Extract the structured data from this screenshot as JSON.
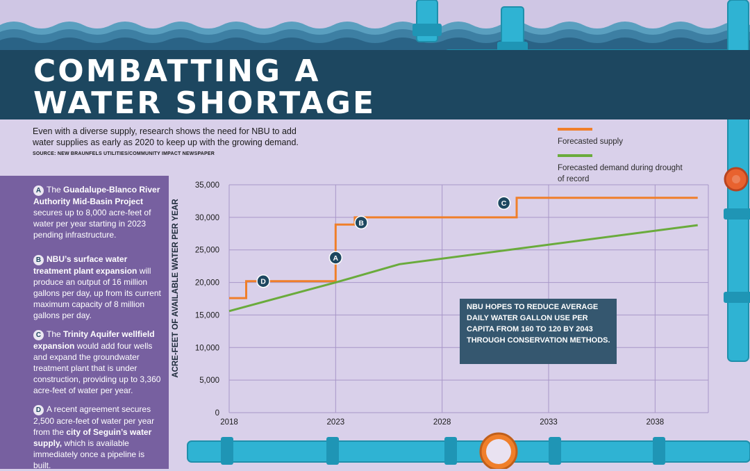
{
  "header": {
    "title": "COMBATTING A WATER SHORTAGE",
    "intro": "Even with a diverse supply, research shows the need for NBU to add water supplies as early as 2020 to keep up with the growing demand.",
    "source": "SOURCE: NEW BRAUNFELS UTILITIES/COMMUNITY IMPACT NEWSPAPER"
  },
  "legend": [
    {
      "label": "Forecasted supply",
      "color": "#f07f2a"
    },
    {
      "label": "Forecasted demand during drought of record",
      "color": "#6aab3c"
    }
  ],
  "notes": [
    {
      "badge": "A",
      "pre": "The ",
      "bold": "Guadalupe-Blanco River Authority Mid-Basin Project",
      "post": " secures up to 8,000 acre-feet of water per year starting in 2023 pending infrastructure."
    },
    {
      "badge": "B",
      "pre": "",
      "bold": "NBU’s surface water treatment plant expansion",
      "post": " will produce an output of 16 million gallons per day, up from its current maximum capacity of 8 million gallons per day."
    },
    {
      "badge": "C",
      "pre": "The ",
      "bold": "Trinity Aquifer wellfield expansion",
      "post": " would add four wells and expand the groundwater treatment plant that is under construction, providing up to 3,360 acre-feet of water per year."
    },
    {
      "badge": "D",
      "pre": "A recent agreement secures 2,500 acre-feet of water per year from the ",
      "bold": "city of Seguin’s water supply,",
      "post": " which is available immediately once a pipeline is built."
    }
  ],
  "callout": "NBU HOPES TO REDUCE AVERAGE DAILY WATER GALLON USE PER CAPITA FROM 160 TO 120 BY 2043 THROUGH CONSERVATION METHODS.",
  "colors": {
    "navy": "#1d4760",
    "purple_panel": "#7760a0",
    "background": "#d9d0ea",
    "pipe": "#2fb3d3",
    "grid": "#a896c8"
  },
  "chart_data": {
    "type": "line",
    "ylabel": "ACRE-FEET OF AVAILABLE WATER PER YEAR",
    "xlim": [
      2018,
      2040.5
    ],
    "ylim": [
      0,
      35000
    ],
    "x_ticks": [
      2018,
      2023,
      2028,
      2033,
      2038
    ],
    "y_ticks": [
      0,
      5000,
      10000,
      15000,
      20000,
      25000,
      30000,
      35000
    ],
    "y_tick_labels": [
      "0",
      "5,000",
      "10,000",
      "15,000",
      "20,000",
      "25,000",
      "30,000",
      "35,000"
    ],
    "grid": true,
    "legend_position": "top-right",
    "series": [
      {
        "name": "Forecasted supply",
        "color": "#f07f2a",
        "step": true,
        "points": [
          [
            2018,
            17600
          ],
          [
            2018.8,
            17600
          ],
          [
            2018.8,
            20200
          ],
          [
            2023,
            20200
          ],
          [
            2023,
            28900
          ],
          [
            2023.9,
            28900
          ],
          [
            2023.9,
            30000
          ],
          [
            2031.5,
            30000
          ],
          [
            2031.5,
            33000
          ],
          [
            2040,
            33000
          ]
        ]
      },
      {
        "name": "Forecasted demand during drought of record",
        "color": "#6aab3c",
        "step": false,
        "points": [
          [
            2018,
            15600
          ],
          [
            2023,
            20000
          ],
          [
            2026,
            22800
          ],
          [
            2040,
            28800
          ]
        ]
      }
    ],
    "annotations": [
      {
        "label": "D",
        "x": 2019.6,
        "y": 20200
      },
      {
        "label": "A",
        "x": 2023,
        "y": 23800
      },
      {
        "label": "B",
        "x": 2024.2,
        "y": 29200
      },
      {
        "label": "C",
        "x": 2030.9,
        "y": 32200
      }
    ]
  }
}
